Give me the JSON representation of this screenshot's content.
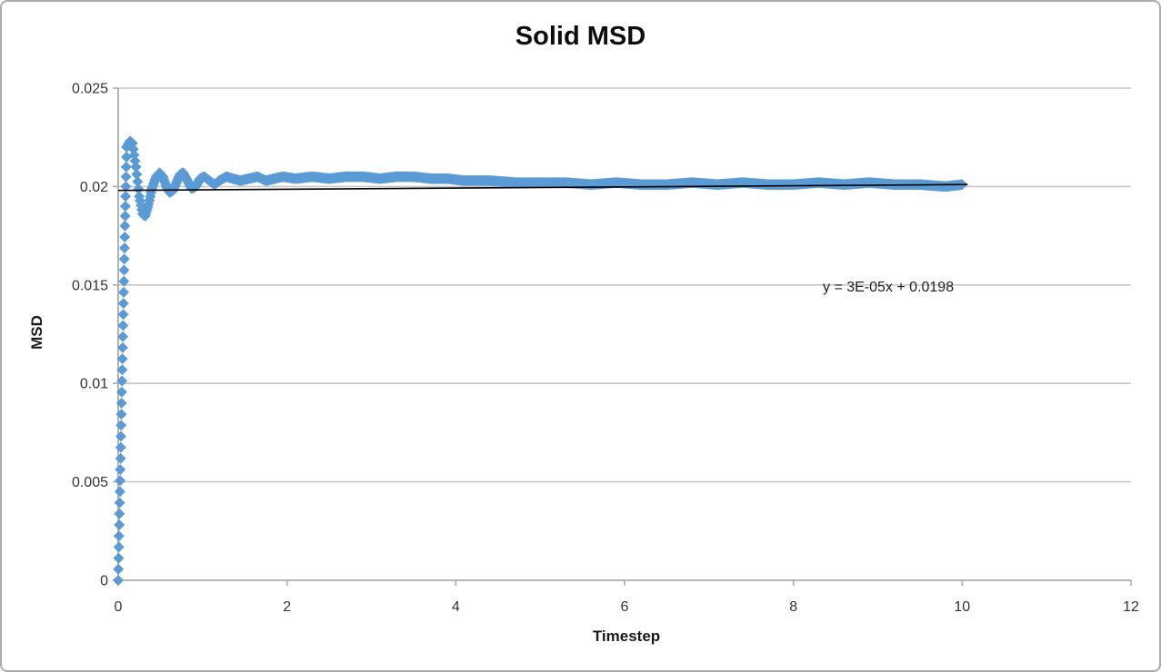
{
  "chart_data": {
    "type": "scatter",
    "title": "Solid MSD",
    "xlabel": "Timestep",
    "ylabel": "MSD",
    "xlim": [
      0,
      12
    ],
    "ylim": [
      0,
      0.025
    ],
    "x_ticks": [
      0,
      2,
      4,
      6,
      8,
      10,
      12
    ],
    "x_tick_labels": [
      "0",
      "2",
      "4",
      "6",
      "8",
      "10",
      "12"
    ],
    "y_ticks": [
      0,
      0.005,
      0.01,
      0.015,
      0.02,
      0.025
    ],
    "y_tick_labels": [
      "0",
      "0.005",
      "0.01",
      "0.015",
      "0.02",
      "0.025"
    ],
    "grid": "horizontal-only",
    "legend": "none",
    "colors": {
      "marker": "#5B9BD5",
      "trendline": "#000000",
      "gridline": "#c6c6c6",
      "axis": "#ababab",
      "text": "#333333"
    },
    "series": [
      {
        "name": "Solid MSD",
        "marker": "diamond",
        "color": "#5B9BD5",
        "x_range": [
          0,
          10
        ],
        "anchor_points": [
          [
            0,
            0
          ],
          [
            0.02,
            0.0045
          ],
          [
            0.04,
            0.009
          ],
          [
            0.06,
            0.0135
          ],
          [
            0.08,
            0.018
          ],
          [
            0.1,
            0.022
          ],
          [
            0.14,
            0.0223
          ],
          [
            0.17,
            0.0222
          ],
          [
            0.21,
            0.021
          ],
          [
            0.25,
            0.0195
          ],
          [
            0.29,
            0.0186
          ],
          [
            0.32,
            0.0185
          ],
          [
            0.36,
            0.0191
          ],
          [
            0.4,
            0.0199
          ],
          [
            0.45,
            0.0205
          ],
          [
            0.49,
            0.0207
          ],
          [
            0.53,
            0.0205
          ],
          [
            0.57,
            0.02
          ],
          [
            0.61,
            0.0197
          ],
          [
            0.65,
            0.0198
          ],
          [
            0.69,
            0.0202
          ],
          [
            0.73,
            0.0206
          ],
          [
            0.77,
            0.0207
          ],
          [
            0.82,
            0.0203
          ],
          [
            0.87,
            0.0199
          ],
          [
            0.92,
            0.02
          ],
          [
            0.97,
            0.0204
          ],
          [
            1.02,
            0.0205
          ],
          [
            1.08,
            0.0203
          ],
          [
            1.14,
            0.0201
          ],
          [
            1.2,
            0.0203
          ],
          [
            1.28,
            0.0205
          ],
          [
            1.36,
            0.0204
          ],
          [
            1.45,
            0.0203
          ],
          [
            1.55,
            0.0204
          ],
          [
            1.65,
            0.0205
          ],
          [
            1.75,
            0.0203
          ],
          [
            1.85,
            0.0204
          ],
          [
            1.95,
            0.0205
          ],
          [
            2.1,
            0.0204
          ],
          [
            2.3,
            0.0205
          ],
          [
            2.5,
            0.0204
          ],
          [
            2.7,
            0.0205
          ],
          [
            2.9,
            0.0205
          ],
          [
            3.1,
            0.0204
          ],
          [
            3.3,
            0.0205
          ],
          [
            3.5,
            0.0205
          ],
          [
            3.7,
            0.0204
          ],
          [
            3.9,
            0.0204
          ],
          [
            4.1,
            0.0203
          ],
          [
            4.4,
            0.0203
          ],
          [
            4.7,
            0.0202
          ],
          [
            5.0,
            0.0202
          ],
          [
            5.3,
            0.0202
          ],
          [
            5.6,
            0.0201
          ],
          [
            5.9,
            0.0202
          ],
          [
            6.2,
            0.0201
          ],
          [
            6.5,
            0.0201
          ],
          [
            6.8,
            0.0202
          ],
          [
            7.1,
            0.0201
          ],
          [
            7.4,
            0.0202
          ],
          [
            7.7,
            0.0201
          ],
          [
            8.0,
            0.0201
          ],
          [
            8.3,
            0.0202
          ],
          [
            8.6,
            0.0201
          ],
          [
            8.9,
            0.0202
          ],
          [
            9.2,
            0.0201
          ],
          [
            9.5,
            0.0201
          ],
          [
            9.8,
            0.02
          ],
          [
            10.0,
            0.0201
          ]
        ]
      }
    ],
    "trendline": {
      "label": "y = 3E-05x + 0.0198",
      "slope": 3e-05,
      "intercept": 0.0198,
      "x_range": [
        0,
        10
      ],
      "color": "#000000"
    }
  }
}
